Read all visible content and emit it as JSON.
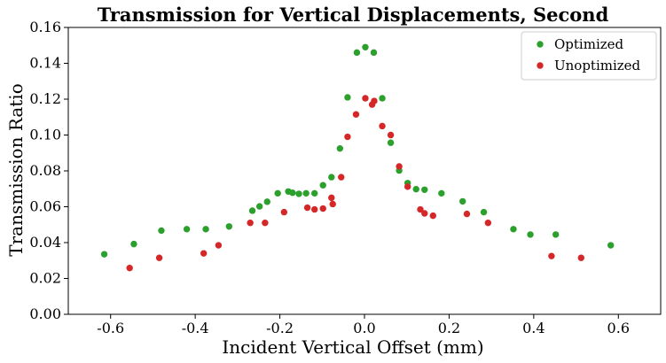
{
  "chart_data": {
    "type": "scatter",
    "title": "Transmission for Vertical Displacements, Second",
    "xlabel": "Incident Vertical Offset (mm)",
    "ylabel": "Transmission Ratio",
    "xlim": [
      -0.7,
      0.7
    ],
    "ylim": [
      0.0,
      0.16
    ],
    "xticks": [
      -0.6,
      -0.4,
      -0.2,
      0.0,
      0.2,
      0.4,
      0.6
    ],
    "xtick_labels": [
      "-0.6",
      "-0.4",
      "-0.2",
      "0.0",
      "0.2",
      "0.4",
      "0.6"
    ],
    "yticks": [
      0.0,
      0.02,
      0.04,
      0.06,
      0.08,
      0.1,
      0.12,
      0.14,
      0.16
    ],
    "ytick_labels": [
      "0.00",
      "0.02",
      "0.04",
      "0.06",
      "0.08",
      "0.10",
      "0.12",
      "0.14",
      "0.16"
    ],
    "grid": false,
    "legend_position": "top-right",
    "series": [
      {
        "name": "Optimized",
        "color": "#2ca02c",
        "points": [
          [
            -0.615,
            0.0335
          ],
          [
            -0.545,
            0.0392
          ],
          [
            -0.48,
            0.0467
          ],
          [
            -0.42,
            0.0475
          ],
          [
            -0.375,
            0.0475
          ],
          [
            -0.32,
            0.049
          ],
          [
            -0.265,
            0.0578
          ],
          [
            -0.248,
            0.0602
          ],
          [
            -0.23,
            0.0628
          ],
          [
            -0.205,
            0.0675
          ],
          [
            -0.18,
            0.0685
          ],
          [
            -0.17,
            0.0678
          ],
          [
            -0.155,
            0.0672
          ],
          [
            -0.138,
            0.0675
          ],
          [
            -0.118,
            0.0675
          ],
          [
            -0.098,
            0.072
          ],
          [
            -0.078,
            0.0765
          ],
          [
            -0.058,
            0.0925
          ],
          [
            -0.04,
            0.121
          ],
          [
            -0.018,
            0.146
          ],
          [
            0.002,
            0.149
          ],
          [
            0.022,
            0.146
          ],
          [
            0.042,
            0.1205
          ],
          [
            0.062,
            0.0957
          ],
          [
            0.082,
            0.0802
          ],
          [
            0.102,
            0.0732
          ],
          [
            0.122,
            0.0698
          ],
          [
            0.142,
            0.0695
          ],
          [
            0.182,
            0.0675
          ],
          [
            0.232,
            0.063
          ],
          [
            0.282,
            0.057
          ],
          [
            0.352,
            0.0475
          ],
          [
            0.392,
            0.0445
          ],
          [
            0.452,
            0.0445
          ],
          [
            0.582,
            0.0385
          ]
        ]
      },
      {
        "name": "Unoptimized",
        "color": "#d62728",
        "points": [
          [
            -0.555,
            0.0258
          ],
          [
            -0.485,
            0.0315
          ],
          [
            -0.38,
            0.034
          ],
          [
            -0.345,
            0.0385
          ],
          [
            -0.27,
            0.051
          ],
          [
            -0.235,
            0.051
          ],
          [
            -0.19,
            0.057
          ],
          [
            -0.135,
            0.0595
          ],
          [
            -0.118,
            0.0585
          ],
          [
            -0.098,
            0.059
          ],
          [
            -0.078,
            0.065
          ],
          [
            -0.075,
            0.0615
          ],
          [
            -0.055,
            0.0765
          ],
          [
            -0.04,
            0.099
          ],
          [
            -0.02,
            0.1115
          ],
          [
            0.002,
            0.1205
          ],
          [
            0.018,
            0.117
          ],
          [
            0.023,
            0.119
          ],
          [
            0.042,
            0.105
          ],
          [
            0.062,
            0.1
          ],
          [
            0.082,
            0.0825
          ],
          [
            0.102,
            0.0712
          ],
          [
            0.132,
            0.0585
          ],
          [
            0.142,
            0.0563
          ],
          [
            0.162,
            0.055
          ],
          [
            0.242,
            0.056
          ],
          [
            0.292,
            0.051
          ],
          [
            0.442,
            0.0325
          ],
          [
            0.512,
            0.0315
          ]
        ]
      }
    ]
  }
}
